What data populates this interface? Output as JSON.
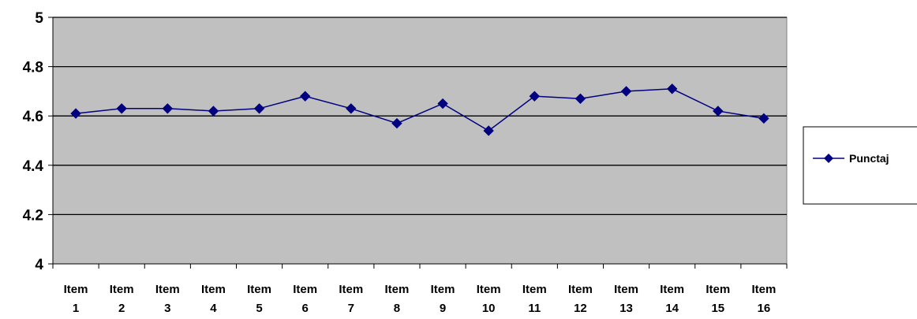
{
  "chart_data": {
    "type": "line",
    "title": "",
    "xlabel": "",
    "ylabel": "",
    "categories": [
      [
        "Item",
        "1"
      ],
      [
        "Item",
        "2"
      ],
      [
        "Item",
        "3"
      ],
      [
        "Item",
        "4"
      ],
      [
        "Item",
        "5"
      ],
      [
        "Item",
        "6"
      ],
      [
        "Item",
        "7"
      ],
      [
        "Item",
        "8"
      ],
      [
        "Item",
        "9"
      ],
      [
        "Item",
        "10"
      ],
      [
        "Item",
        "11"
      ],
      [
        "Item",
        "12"
      ],
      [
        "Item",
        "13"
      ],
      [
        "Item",
        "14"
      ],
      [
        "Item",
        "15"
      ],
      [
        "Item",
        "16"
      ]
    ],
    "series": [
      {
        "name": "Punctaj",
        "color": "#000080",
        "marker": "diamond",
        "values": [
          4.61,
          4.63,
          4.63,
          4.62,
          4.63,
          4.68,
          4.63,
          4.57,
          4.65,
          4.54,
          4.68,
          4.67,
          4.7,
          4.71,
          4.62,
          4.59
        ]
      }
    ],
    "ylim": [
      4,
      5
    ],
    "yticks": [
      "4",
      "4.2",
      "4.4",
      "4.6",
      "4.8",
      "5"
    ],
    "ytick_values": [
      4,
      4.2,
      4.4,
      4.6,
      4.8,
      5
    ],
    "grid": true,
    "legend": "right",
    "plot_background": "#c0c0c0",
    "gridline_color": "#000000"
  }
}
